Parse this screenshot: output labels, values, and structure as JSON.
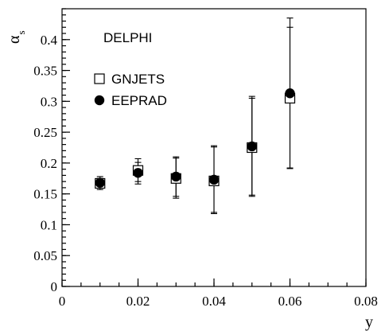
{
  "chart_data": {
    "type": "scatter",
    "annotation": "DELPHI",
    "xlabel": "y",
    "ylabel_main": "α",
    "ylabel_sub": "s",
    "xlim": [
      0,
      0.08
    ],
    "ylim": [
      0,
      0.45
    ],
    "x_ticks": [
      {
        "value": 0,
        "label": "0"
      },
      {
        "value": 0.02,
        "label": "0.02"
      },
      {
        "value": 0.04,
        "label": "0.04"
      },
      {
        "value": 0.06,
        "label": "0.06"
      },
      {
        "value": 0.08,
        "label": "0.08"
      }
    ],
    "y_ticks": [
      {
        "value": 0,
        "label": "0"
      },
      {
        "value": 0.05,
        "label": "0.05"
      },
      {
        "value": 0.1,
        "label": "0.1"
      },
      {
        "value": 0.15,
        "label": "0.15"
      },
      {
        "value": 0.2,
        "label": "0.2"
      },
      {
        "value": 0.25,
        "label": "0.25"
      },
      {
        "value": 0.3,
        "label": "0.3"
      },
      {
        "value": 0.35,
        "label": "0.35"
      },
      {
        "value": 0.4,
        "label": "0.4"
      }
    ],
    "x_minor_step": 0.005,
    "y_minor_step": 0.01,
    "legend_position": "top-left",
    "series": [
      {
        "name": "GNJETS",
        "marker": "open-square",
        "points": [
          {
            "x": 0.01,
            "y": 0.167,
            "ylo": 0.157,
            "yhi": 0.178
          },
          {
            "x": 0.02,
            "y": 0.188,
            "ylo": 0.17,
            "yhi": 0.207
          },
          {
            "x": 0.03,
            "y": 0.175,
            "ylo": 0.143,
            "yhi": 0.21
          },
          {
            "x": 0.04,
            "y": 0.171,
            "ylo": 0.118,
            "yhi": 0.228
          },
          {
            "x": 0.05,
            "y": 0.225,
            "ylo": 0.146,
            "yhi": 0.308
          },
          {
            "x": 0.06,
            "y": 0.305,
            "ylo": 0.191,
            "yhi": 0.435
          }
        ]
      },
      {
        "name": "EEPRAD",
        "marker": "filled-circle",
        "points": [
          {
            "x": 0.01,
            "y": 0.168,
            "ylo": 0.16,
            "yhi": 0.175
          },
          {
            "x": 0.02,
            "y": 0.184,
            "ylo": 0.166,
            "yhi": 0.201
          },
          {
            "x": 0.03,
            "y": 0.178,
            "ylo": 0.146,
            "yhi": 0.208
          },
          {
            "x": 0.04,
            "y": 0.173,
            "ylo": 0.12,
            "yhi": 0.226
          },
          {
            "x": 0.05,
            "y": 0.227,
            "ylo": 0.148,
            "yhi": 0.305
          },
          {
            "x": 0.06,
            "y": 0.313,
            "ylo": 0.192,
            "yhi": 0.42
          }
        ]
      }
    ]
  }
}
